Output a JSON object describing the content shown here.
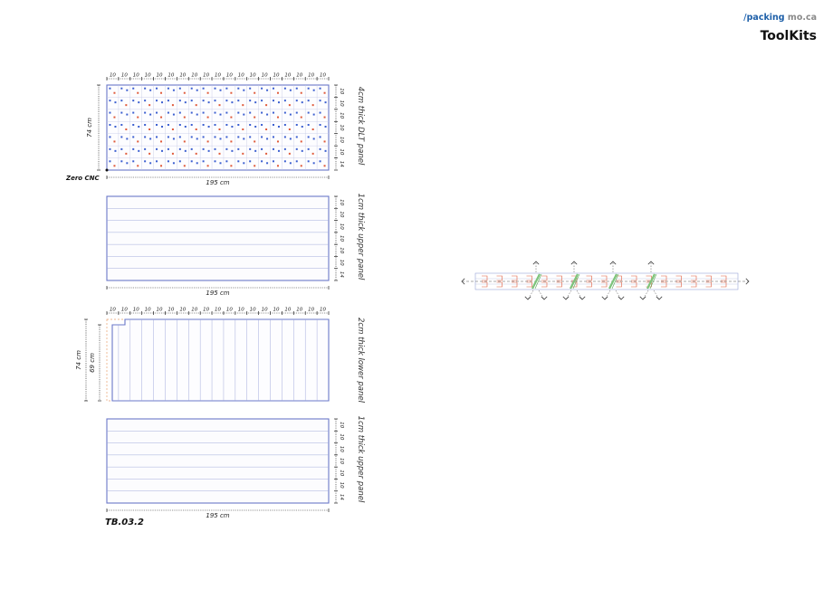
{
  "header": {
    "logo_slash": "/",
    "logo_part1": "packing",
    "logo_part2": "mo.ca",
    "title": "ToolKits"
  },
  "sheet_label": "TB.03.2",
  "zero_label": "Zero CNC",
  "colors": {
    "panel_outline": "#6a78c8",
    "dowel_blue": "#3c5fd0",
    "dowel_red": "#e05a3a",
    "dim_line": "#222222",
    "hidden_line": "#e8a070",
    "groove_green": "#7cc47a"
  },
  "panels": [
    {
      "id": "panel-dlt",
      "label": "4cm thick DLT panel",
      "width_label": "195 cm",
      "height_label": "74 cm",
      "top_dims": [
        "10",
        "10",
        "10",
        "10",
        "10",
        "10",
        "10",
        "10",
        "10",
        "10",
        "10",
        "10",
        "10",
        "10",
        "10",
        "10",
        "10",
        "10",
        "10"
      ],
      "side_dims": [
        "10",
        "10",
        "10",
        "10",
        "10",
        "10",
        "14"
      ]
    },
    {
      "id": "panel-upper-1",
      "label": "1cm thick upper panel",
      "width_label": "195 cm",
      "side_dims": [
        "10",
        "10",
        "10",
        "10",
        "10",
        "10",
        "14"
      ]
    },
    {
      "id": "panel-lower",
      "label": "2cm thick lower panel",
      "outer_height_label": "74 cm",
      "inner_height_label": "69 cm",
      "top_dims": [
        "10",
        "10",
        "10",
        "10",
        "10",
        "10",
        "10",
        "10",
        "10",
        "10",
        "10",
        "10",
        "10",
        "10",
        "10",
        "10",
        "10",
        "10",
        "10"
      ]
    },
    {
      "id": "panel-upper-2",
      "label": "1cm thick upper panel",
      "width_label": "195 cm",
      "side_dims": [
        "10",
        "10",
        "10",
        "10",
        "10",
        "10",
        "14"
      ]
    }
  ]
}
